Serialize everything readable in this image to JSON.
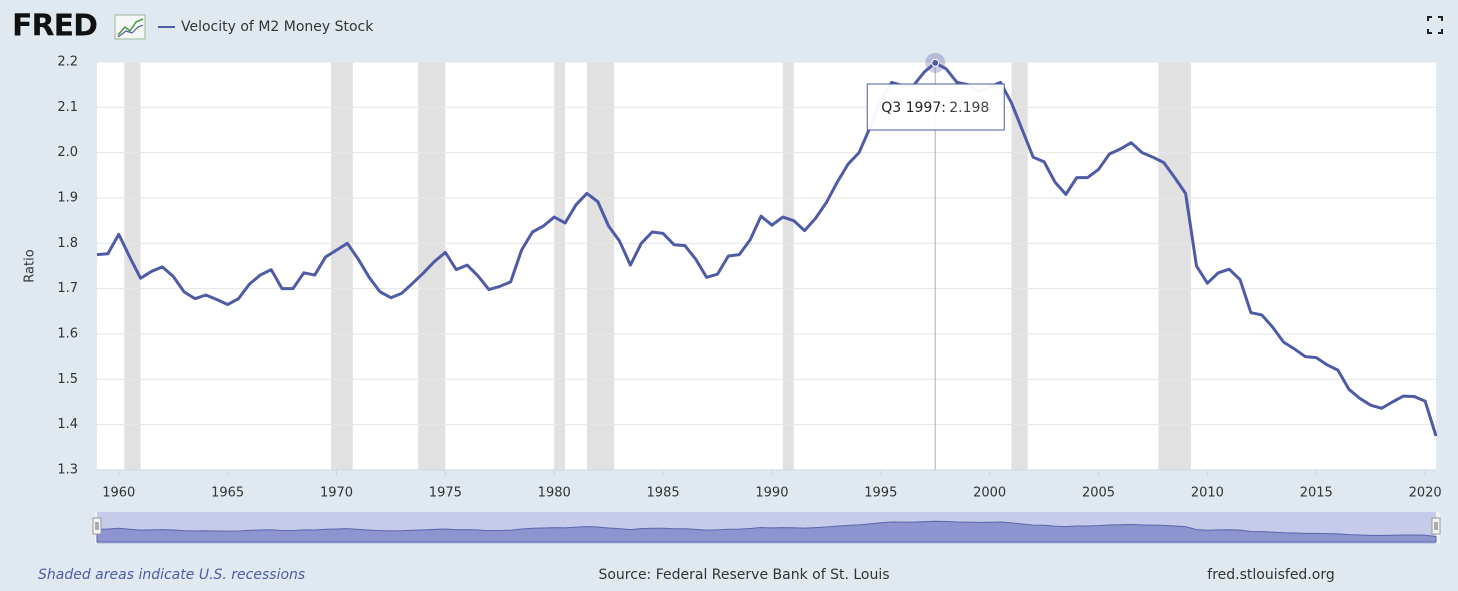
{
  "chart_data": {
    "type": "line",
    "brand": "FRED",
    "ylabel": "Ratio",
    "note": "Shaded areas indicate U.S. recessions",
    "source": "Source: Federal Reserve Bank of St. Louis",
    "url": "fred.stlouisfed.org",
    "x": [
      1959,
      1959.5,
      1960,
      1960.5,
      1961,
      1961.5,
      1962,
      1962.5,
      1963,
      1963.5,
      1964,
      1964.5,
      1965,
      1965.5,
      1966,
      1966.5,
      1967,
      1967.5,
      1968,
      1968.5,
      1969,
      1969.5,
      1970,
      1970.5,
      1971,
      1971.5,
      1972,
      1972.5,
      1973,
      1973.5,
      1974,
      1974.5,
      1975,
      1975.5,
      1976,
      1976.5,
      1977,
      1977.5,
      1978,
      1978.5,
      1979,
      1979.5,
      1980,
      1980.5,
      1981,
      1981.5,
      1982,
      1982.5,
      1983,
      1983.5,
      1984,
      1984.5,
      1985,
      1985.5,
      1986,
      1986.5,
      1987,
      1987.5,
      1988,
      1988.5,
      1989,
      1989.5,
      1990,
      1990.5,
      1991,
      1991.5,
      1992,
      1992.5,
      1993,
      1993.5,
      1994,
      1994.5,
      1995,
      1995.5,
      1996,
      1996.5,
      1997,
      1997.5,
      1998,
      1998.5,
      1999,
      1999.5,
      2000,
      2000.5,
      2001,
      2001.5,
      2002,
      2002.5,
      2003,
      2003.5,
      2004,
      2004.5,
      2005,
      2005.5,
      2006,
      2006.5,
      2007,
      2007.5,
      2008,
      2008.5,
      2009,
      2009.5,
      2010,
      2010.5,
      2011,
      2011.5,
      2012,
      2012.5,
      2013,
      2013.5,
      2014,
      2014.5,
      2015,
      2015.5,
      2016,
      2016.5,
      2017,
      2017.5,
      2018,
      2018.5,
      2019,
      2019.5,
      2020,
      2020.5
    ],
    "series": [
      {
        "name": "Velocity of M2 Money Stock",
        "color": "#4e5ba6",
        "values": [
          1.775,
          1.777,
          1.82,
          1.77,
          1.723,
          1.738,
          1.748,
          1.727,
          1.693,
          1.678,
          1.686,
          1.676,
          1.665,
          1.678,
          1.71,
          1.73,
          1.742,
          1.7,
          1.7,
          1.735,
          1.73,
          1.77,
          1.785,
          1.8,
          1.765,
          1.725,
          1.693,
          1.68,
          1.69,
          1.712,
          1.735,
          1.76,
          1.78,
          1.742,
          1.752,
          1.728,
          1.698,
          1.705,
          1.715,
          1.785,
          1.825,
          1.838,
          1.858,
          1.845,
          1.885,
          1.91,
          1.892,
          1.838,
          1.805,
          1.752,
          1.8,
          1.825,
          1.822,
          1.797,
          1.795,
          1.765,
          1.725,
          1.732,
          1.772,
          1.775,
          1.808,
          1.86,
          1.84,
          1.858,
          1.85,
          1.828,
          1.855,
          1.89,
          1.935,
          1.975,
          2.0,
          2.055,
          2.115,
          2.155,
          2.148,
          2.148,
          2.178,
          2.198,
          2.185,
          2.155,
          2.15,
          2.135,
          2.145,
          2.155,
          2.11,
          2.05,
          1.99,
          1.98,
          1.935,
          1.908,
          1.945,
          1.945,
          1.963,
          1.997,
          2.008,
          2.022,
          2.0,
          1.99,
          1.978,
          1.945,
          1.91,
          1.75,
          1.712,
          1.735,
          1.743,
          1.72,
          1.647,
          1.642,
          1.615,
          1.582,
          1.567,
          1.55,
          1.548,
          1.532,
          1.52,
          1.478,
          1.458,
          1.443,
          1.436,
          1.45,
          1.463,
          1.462,
          1.452,
          1.375
        ]
      }
    ],
    "recessions": [
      [
        1960.25,
        1961.0
      ],
      [
        1969.75,
        1970.75
      ],
      [
        1973.75,
        1975.0
      ],
      [
        1980.0,
        1980.5
      ],
      [
        1981.5,
        1982.75
      ],
      [
        1990.5,
        1991.0
      ],
      [
        2001.0,
        2001.75
      ],
      [
        2007.75,
        2009.25
      ]
    ],
    "recession_color": "#e1e1e1",
    "tooltip": {
      "label": "Q3 1997:",
      "value": 2.198
    },
    "xlim": [
      1959,
      2020.5
    ],
    "xticks": [
      1960,
      1965,
      1970,
      1975,
      1980,
      1985,
      1990,
      1995,
      2000,
      2005,
      2010,
      2015,
      2020
    ],
    "ylim": [
      1.3,
      2.2
    ],
    "yticks": [
      1.3,
      1.4,
      1.5,
      1.6,
      1.7,
      1.8,
      1.9,
      {
        "value": 2,
        "label": "2.0"
      },
      2.1,
      2.2
    ],
    "grid": true
  }
}
